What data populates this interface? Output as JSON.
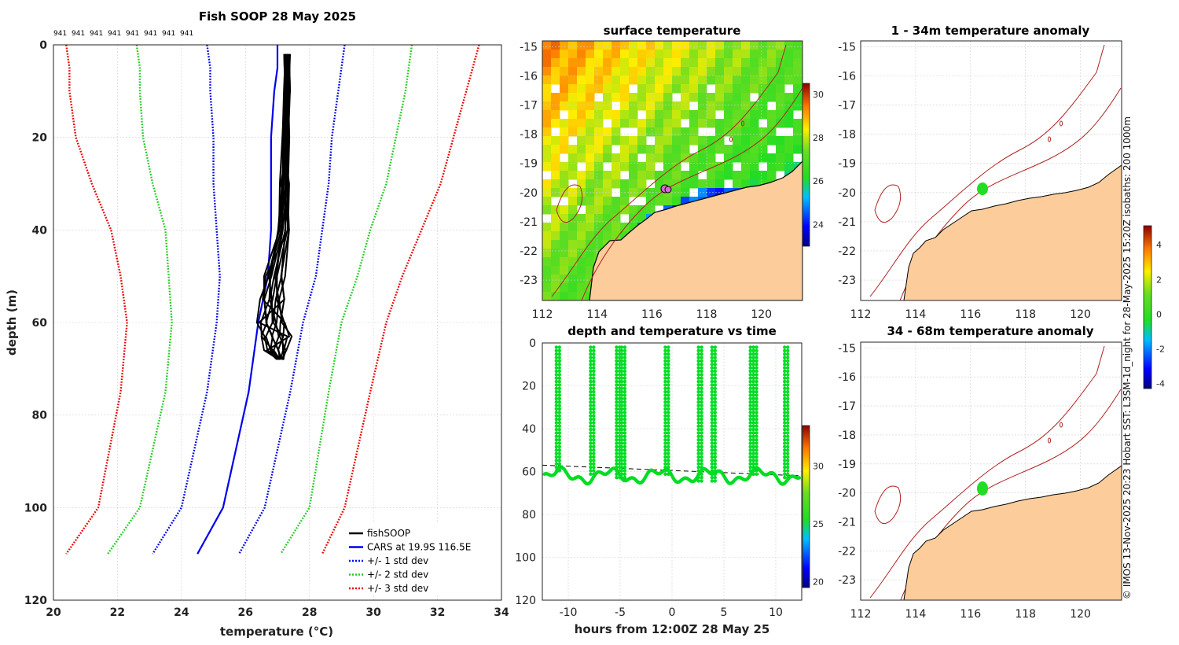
{
  "credit": "© IMOS 13-Nov-2025 20:23 Hobart SST: L3SM-1d_night for 28-May-2025 15:20Z isobaths: 200  1000m",
  "colors": {
    "fishsoop": "#000000",
    "cars": "#0000ee",
    "std1": "#0000ee",
    "std2": "#22cc22",
    "std3": "#ee0000",
    "land": "#fccc9a",
    "isobath": "#b22222",
    "track": "#00dd22"
  },
  "chart_data": [
    {
      "id": "profile",
      "type": "line",
      "title": "Fish SOOP 28 May 2025",
      "xlabel": "temperature (°C)",
      "ylabel": "depth (m)",
      "xlim": [
        20,
        34
      ],
      "ylim": [
        0,
        120
      ],
      "y_inverted": true,
      "xticks": [
        "20",
        "22",
        "24",
        "26",
        "28",
        "30",
        "32",
        "34"
      ],
      "yticks": [
        "0",
        "20",
        "40",
        "60",
        "80",
        "100",
        "120"
      ],
      "top_counts": [
        "941",
        "941",
        "941",
        "941",
        "941",
        "941",
        "941",
        "941"
      ],
      "depths": [
        0,
        5,
        10,
        20,
        30,
        40,
        50,
        60,
        75,
        100,
        110
      ],
      "series": [
        {
          "name": "CARS at 19.9S 116.5E",
          "style": "solid",
          "color": "#0000ee",
          "temps": [
            27.0,
            27.0,
            26.9,
            26.8,
            26.8,
            26.8,
            26.7,
            26.4,
            26.1,
            25.3,
            24.5
          ]
        },
        {
          "name": "+/- 1 std dev",
          "style": "dotted",
          "color": "#0000ee",
          "temps": [
            24.8,
            24.9,
            24.9,
            25.0,
            25.0,
            25.1,
            25.2,
            25.1,
            24.8,
            24.0,
            23.1
          ]
        },
        {
          "name": "+/- 1 std dev",
          "style": "dotted",
          "color": "#0000ee",
          "temps": [
            29.1,
            29.0,
            28.9,
            28.7,
            28.6,
            28.4,
            28.2,
            27.8,
            27.4,
            26.6,
            25.8
          ]
        },
        {
          "name": "+/- 2 std dev",
          "style": "dotted",
          "color": "#22cc22",
          "temps": [
            22.6,
            22.7,
            22.7,
            22.8,
            23.1,
            23.5,
            23.6,
            23.7,
            23.5,
            22.7,
            21.7
          ]
        },
        {
          "name": "+/- 2 std dev",
          "style": "dotted",
          "color": "#22cc22",
          "temps": [
            31.2,
            31.1,
            31.0,
            30.7,
            30.4,
            29.9,
            29.5,
            29.0,
            28.6,
            28.0,
            27.1
          ]
        },
        {
          "name": "+/- 3 std dev",
          "style": "dotted",
          "color": "#ee0000",
          "temps": [
            20.4,
            20.5,
            20.5,
            20.7,
            21.2,
            21.8,
            22.1,
            22.3,
            22.1,
            21.4,
            20.4
          ]
        },
        {
          "name": "+/- 3 std dev",
          "style": "dotted",
          "color": "#ee0000",
          "temps": [
            33.3,
            33.1,
            32.9,
            32.5,
            32.1,
            31.5,
            30.9,
            30.4,
            29.9,
            29.1,
            28.4
          ]
        }
      ],
      "fishsoop": {
        "name": "fishSOOP",
        "depths": [
          2,
          10,
          20,
          30,
          40,
          50,
          55,
          60,
          63,
          66,
          68
        ],
        "temp_min": [
          27.2,
          27.2,
          27.15,
          27.1,
          27.0,
          26.6,
          26.5,
          26.4,
          26.4,
          26.6,
          27.0
        ],
        "temp_max": [
          27.4,
          27.4,
          27.4,
          27.4,
          27.4,
          27.3,
          27.3,
          27.4,
          27.5,
          27.4,
          27.2
        ]
      },
      "legend": [
        {
          "label": "fishSOOP",
          "style": "solid",
          "color": "#000000"
        },
        {
          "label": "CARS at 19.9S 116.5E",
          "style": "solid",
          "color": "#0000ee"
        },
        {
          "label": "+/- 1 std dev",
          "style": "dotted",
          "color": "#0000ee"
        },
        {
          "label": "+/- 2 std dev",
          "style": "dotted",
          "color": "#22cc22"
        },
        {
          "label": "+/- 3 std dev",
          "style": "dotted",
          "color": "#ee0000"
        }
      ]
    },
    {
      "id": "timeseries",
      "type": "scatter",
      "title": "depth and temperature vs time",
      "xlabel": "hours from 12:00Z 28 May 25",
      "xlim": [
        -12.5,
        12.5
      ],
      "ylim": [
        0,
        120
      ],
      "y_inverted": true,
      "xticks": [
        "-10",
        "-5",
        "0",
        "5",
        "10"
      ],
      "yticks": [
        "0",
        "20",
        "40",
        "60",
        "80",
        "100",
        "120"
      ],
      "dives": [
        {
          "t": -11.0,
          "bottom": 61
        },
        {
          "t": -7.7,
          "bottom": 62
        },
        {
          "t": -5.2,
          "bottom": 63
        },
        {
          "t": -4.7,
          "bottom": 63
        },
        {
          "t": -0.5,
          "bottom": 62
        },
        {
          "t": 2.7,
          "bottom": 65
        },
        {
          "t": 4.0,
          "bottom": 66
        },
        {
          "t": 7.7,
          "bottom": 62
        },
        {
          "t": 8.0,
          "bottom": 62
        },
        {
          "t": 11.0,
          "bottom": 64
        }
      ],
      "reference_depth_line": [
        57,
        62
      ],
      "colorbar": {
        "min": 19.5,
        "max": 33.5,
        "ticks": [
          "20",
          "25",
          "30"
        ]
      }
    },
    {
      "id": "sst_map",
      "type": "heatmap",
      "title": "surface temperature",
      "xticks": [
        "112",
        "114",
        "116",
        "118",
        "120"
      ],
      "yticks": [
        "-15",
        "-16",
        "-17",
        "-18",
        "-19",
        "-20",
        "-21",
        "-22",
        "-23"
      ],
      "lon_range": [
        112,
        121.5
      ],
      "lat_range": [
        -23.7,
        -14.8
      ],
      "colorbar": {
        "min": 23,
        "max": 30.5,
        "ticks": [
          "30",
          "28",
          "26",
          "24"
        ]
      },
      "marker": {
        "lon": 116.5,
        "lat": -19.9
      }
    },
    {
      "id": "anom_map_1",
      "type": "heatmap",
      "title": "1 - 34m temperature anomaly",
      "xticks": [
        "112",
        "114",
        "116",
        "118",
        "120"
      ],
      "yticks": [
        "-15",
        "-16",
        "-17",
        "-18",
        "-19",
        "-20",
        "-21",
        "-22",
        "-23"
      ],
      "marker": {
        "lon": 116.5,
        "lat": -19.85
      }
    },
    {
      "id": "anom_map_2",
      "type": "heatmap",
      "title": "34 - 68m temperature anomaly",
      "xticks": [
        "112",
        "114",
        "116",
        "118",
        "120"
      ],
      "yticks": [
        "-15",
        "-16",
        "-17",
        "-18",
        "-19",
        "-20",
        "-21",
        "-22",
        "-23"
      ],
      "marker": {
        "lon": 116.5,
        "lat": -19.85
      }
    },
    {
      "id": "anom_colorbar",
      "type": "heatmap",
      "colorbar": {
        "min": -4.3,
        "max": 5.1,
        "ticks": [
          "4",
          "2",
          "0",
          "-2",
          "-4"
        ]
      }
    }
  ]
}
